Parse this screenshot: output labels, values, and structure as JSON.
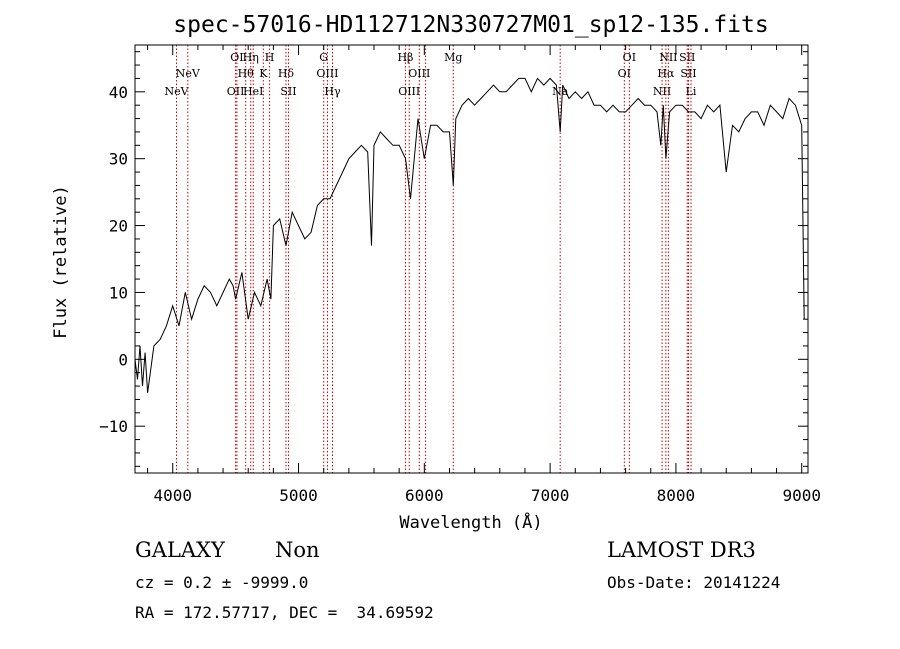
{
  "chart_data": {
    "type": "line",
    "title": "spec-57016-HD112712N330727M01_sp12-135.fits",
    "xlabel": "Wavelength (Å)",
    "ylabel": "Flux (relative)",
    "xlim": [
      3700,
      9050
    ],
    "ylim": [
      -17,
      47
    ],
    "x_ticks": [
      4000,
      5000,
      6000,
      7000,
      8000,
      9000
    ],
    "y_ticks": [
      -10,
      0,
      10,
      20,
      30,
      40
    ],
    "grid": false,
    "series": [
      {
        "x": [
          3700,
          3720,
          3740,
          3760,
          3780,
          3800,
          3850,
          3900,
          3950,
          4000,
          4050,
          4100,
          4150,
          4200,
          4250,
          4300,
          4350,
          4400,
          4450,
          4480,
          4500,
          4550,
          4600,
          4650,
          4700,
          4750,
          4780,
          4800,
          4850,
          4900,
          4950,
          5000,
          5050,
          5100,
          5150,
          5200,
          5250,
          5300,
          5350,
          5400,
          5450,
          5500,
          5550,
          5580,
          5600,
          5650,
          5700,
          5750,
          5800,
          5850,
          5890,
          5950,
          6000,
          6050,
          6100,
          6150,
          6200,
          6230,
          6250,
          6300,
          6350,
          6400,
          6450,
          6500,
          6550,
          6600,
          6650,
          6700,
          6750,
          6800,
          6850,
          6900,
          6950,
          7000,
          7050,
          7080,
          7100,
          7150,
          7200,
          7250,
          7300,
          7350,
          7400,
          7450,
          7500,
          7550,
          7600,
          7650,
          7700,
          7750,
          7800,
          7850,
          7880,
          7900,
          7920,
          7950,
          8000,
          8050,
          8100,
          8150,
          8200,
          8250,
          8300,
          8350,
          8400,
          8450,
          8500,
          8550,
          8600,
          8650,
          8700,
          8750,
          8800,
          8850,
          8900,
          8950,
          9000,
          9020
        ],
        "y": [
          0,
          -3,
          2,
          -4,
          1,
          -5,
          2,
          3,
          5,
          8,
          5,
          10,
          6,
          9,
          11,
          10,
          8,
          10,
          12,
          11,
          9,
          13,
          6,
          10,
          8,
          12,
          9,
          20,
          21,
          17,
          22,
          20,
          18,
          19,
          23,
          24,
          24,
          26,
          28,
          30,
          31,
          32,
          31,
          17,
          32,
          34,
          33,
          32,
          32,
          30,
          24,
          36,
          30,
          35,
          35,
          34,
          34,
          26,
          36,
          38,
          39,
          38,
          39,
          40,
          41,
          40,
          40,
          41,
          42,
          42,
          40,
          42,
          41,
          42,
          41,
          34,
          41,
          39,
          40,
          39,
          40,
          38,
          38,
          37,
          38,
          37,
          37,
          38,
          39,
          38,
          38,
          37,
          32,
          38,
          30,
          37,
          38,
          38,
          37,
          37,
          36,
          38,
          37,
          38,
          28,
          35,
          34,
          36,
          37,
          37,
          35,
          38,
          37,
          36,
          39,
          38,
          35,
          6
        ]
      }
    ],
    "lines": [
      {
        "x": 4030,
        "label": "NeV",
        "row": 2
      },
      {
        "x": 4120,
        "label": "NeV",
        "row": 1
      },
      {
        "x": 4500,
        "label": "OII",
        "row": 2
      },
      {
        "x": 4510,
        "label": "OI",
        "row": 0
      },
      {
        "x": 4580,
        "label": "Hθ",
        "row": 1
      },
      {
        "x": 4620,
        "label": "Hη",
        "row": 0
      },
      {
        "x": 4640,
        "label": "HeI",
        "row": 2
      },
      {
        "x": 4720,
        "label": "K",
        "row": 1
      },
      {
        "x": 4770,
        "label": "H",
        "row": 0
      },
      {
        "x": 4900,
        "label": "Hδ",
        "row": 1
      },
      {
        "x": 4920,
        "label": "SII",
        "row": 2
      },
      {
        "x": 5200,
        "label": "G",
        "row": 0
      },
      {
        "x": 5230,
        "label": "OIII",
        "row": 1
      },
      {
        "x": 5270,
        "label": "Hγ",
        "row": 2
      },
      {
        "x": 5850,
        "label": "Hβ",
        "row": 0
      },
      {
        "x": 5880,
        "label": "OIII",
        "row": 2
      },
      {
        "x": 5960,
        "label": "OIII",
        "row": 1
      },
      {
        "x": 6010,
        "label": "",
        "row": 2
      },
      {
        "x": 6230,
        "label": "Mg",
        "row": 0
      },
      {
        "x": 7080,
        "label": "Na",
        "row": 2
      },
      {
        "x": 7590,
        "label": "OI",
        "row": 1
      },
      {
        "x": 7630,
        "label": "OI",
        "row": 0
      },
      {
        "x": 7890,
        "label": "NII",
        "row": 2
      },
      {
        "x": 7920,
        "label": "Hα",
        "row": 1
      },
      {
        "x": 7940,
        "label": "NII",
        "row": 0
      },
      {
        "x": 8090,
        "label": "SII",
        "row": 0
      },
      {
        "x": 8100,
        "label": "SII",
        "row": 1
      },
      {
        "x": 8120,
        "label": "Li",
        "row": 2
      }
    ],
    "line_color": "#cc0000"
  },
  "footer": {
    "class_label": "GALAXY",
    "subclass_label": "Non",
    "survey": "LAMOST DR3",
    "cz": "cz = 0.2 ± -9999.0",
    "obs_date": "Obs-Date: 20141224",
    "radec": "RA = 172.57717, DEC =  34.69592"
  }
}
